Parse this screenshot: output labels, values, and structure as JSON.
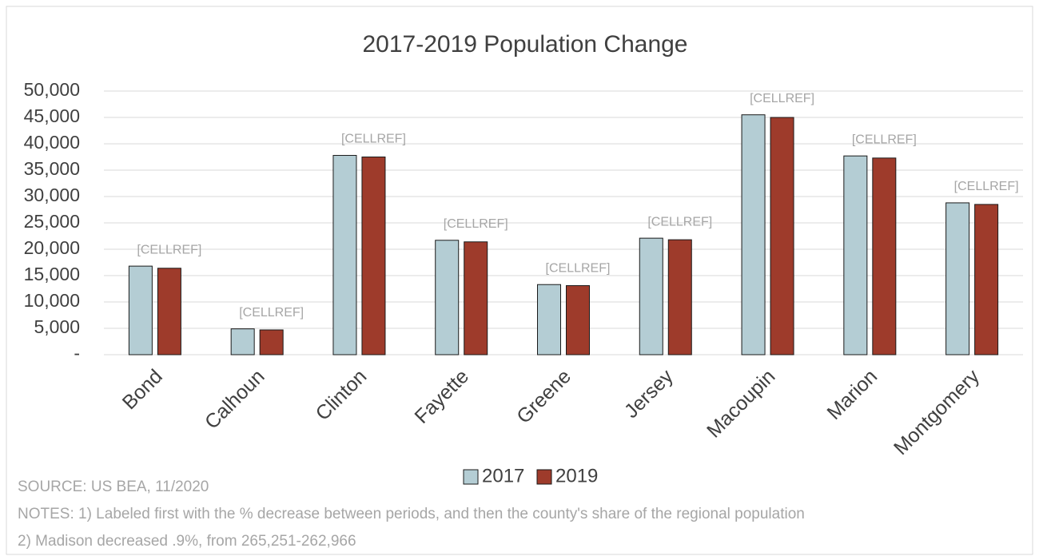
{
  "chart_data": {
    "type": "bar",
    "title": "2017-2019 Population Change",
    "categories": [
      "Bond",
      "Calhoun",
      "Clinton",
      "Fayette",
      "Greene",
      "Jersey",
      "Macoupin",
      "Marion",
      "Montgomery"
    ],
    "series": [
      {
        "name": "2017",
        "color": "#b4cdd4",
        "values": [
          16800,
          4900,
          37800,
          21700,
          13300,
          22100,
          45500,
          37700,
          28800
        ]
      },
      {
        "name": "2019",
        "color": "#9e3b2b",
        "values": [
          16400,
          4700,
          37500,
          21400,
          13100,
          21800,
          45000,
          37300,
          28500
        ]
      }
    ],
    "annotations": [
      "[CELLREF]",
      "[CELLREF]",
      "[CELLREF]",
      "[CELLREF]",
      "[CELLREF]",
      "[CELLREF]",
      "[CELLREF]",
      "[CELLREF]",
      "[CELLREF]"
    ],
    "ylim": [
      0,
      50000
    ],
    "yticks": [
      {
        "value": 0,
        "label": "-"
      },
      {
        "value": 5000,
        "label": "5,000"
      },
      {
        "value": 10000,
        "label": "10,000"
      },
      {
        "value": 15000,
        "label": "15,000"
      },
      {
        "value": 20000,
        "label": "20,000"
      },
      {
        "value": 25000,
        "label": "25,000"
      },
      {
        "value": 30000,
        "label": "30,000"
      },
      {
        "value": 35000,
        "label": "35,000"
      },
      {
        "value": 40000,
        "label": "40,000"
      },
      {
        "value": 45000,
        "label": "45,000"
      },
      {
        "value": 50000,
        "label": "50,000"
      }
    ],
    "grid": true,
    "legend": "bottom",
    "notes": [
      "SOURCE: US BEA, 11/2020",
      "NOTES: 1) Labeled first with the % decrease between periods, and then the county's share of the regional population",
      "2) Madison decreased .9%, from 265,251-262,966"
    ]
  }
}
